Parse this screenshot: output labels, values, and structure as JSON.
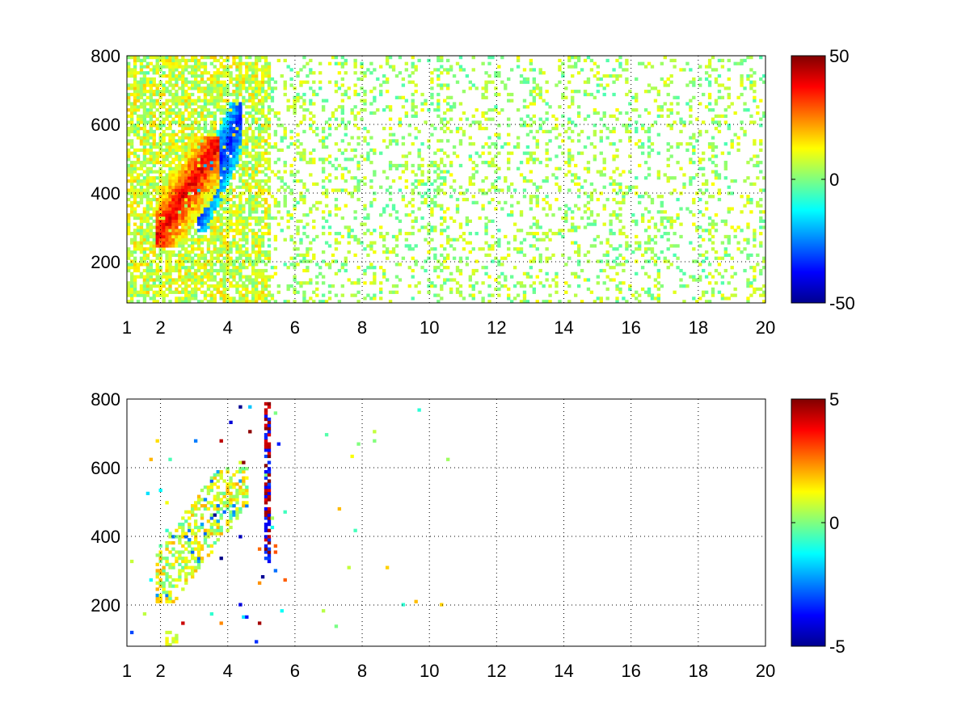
{
  "chart_data": [
    {
      "type": "heatmap",
      "title": "",
      "xlabel": "",
      "ylabel": "",
      "xlim": [
        1,
        20
      ],
      "ylim": [
        80,
        800
      ],
      "xticks": [
        1,
        2,
        4,
        6,
        8,
        10,
        12,
        14,
        16,
        18,
        20
      ],
      "yticks": [
        200,
        400,
        600,
        800
      ],
      "grid": true,
      "colormap": "jet",
      "clim": [
        -50,
        50
      ],
      "colorbar": {
        "ticks": [
          50,
          0,
          -50
        ],
        "labels": [
          "50",
          "0",
          "-50"
        ]
      },
      "features": [
        {
          "description_value": "positive band",
          "x_range": [
            1.8,
            3.6
          ],
          "y_range": [
            250,
            550
          ],
          "peak_value": 45
        },
        {
          "description_value": "negative band",
          "x_range": [
            3.0,
            4.3
          ],
          "y_range": [
            300,
            650
          ],
          "peak_value": -40
        },
        {
          "description_value": "sparse noise",
          "x_range": [
            1,
            20
          ],
          "y_range": [
            80,
            800
          ],
          "typical_value": 5
        }
      ]
    },
    {
      "type": "heatmap",
      "title": "",
      "xlabel": "",
      "ylabel": "",
      "xlim": [
        1,
        20
      ],
      "ylim": [
        80,
        800
      ],
      "xticks": [
        1,
        2,
        4,
        6,
        8,
        10,
        12,
        14,
        16,
        18,
        20
      ],
      "yticks": [
        200,
        400,
        600,
        800
      ],
      "grid": true,
      "colormap": "jet",
      "clim": [
        -5,
        5
      ],
      "colorbar": {
        "ticks": [
          5,
          0,
          -5
        ],
        "labels": [
          "5",
          "0",
          "-5"
        ]
      },
      "features": [
        {
          "description_value": "main cluster",
          "x_range": [
            1.8,
            4.6
          ],
          "y_range": [
            220,
            580
          ],
          "typical_value": 0.8
        },
        {
          "description_value": "vertical streak",
          "x_range": [
            5.1,
            5.2
          ],
          "y_range": [
            320,
            790
          ],
          "typical_value": 3
        }
      ]
    }
  ]
}
